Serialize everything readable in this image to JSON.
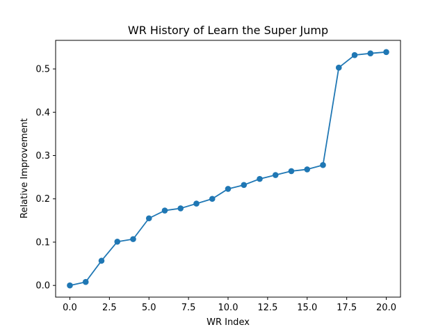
{
  "chart_data": {
    "type": "line",
    "title": "WR History of Learn the Super Jump",
    "xlabel": "WR Index",
    "ylabel": "Relative Improvement",
    "x": [
      0,
      1,
      2,
      3,
      4,
      5,
      6,
      7,
      8,
      9,
      10,
      11,
      12,
      13,
      14,
      15,
      16,
      17,
      18,
      19,
      20
    ],
    "series": [
      {
        "values": [
          0.0,
          0.008,
          0.057,
          0.101,
          0.107,
          0.155,
          0.173,
          0.178,
          0.189,
          0.2,
          0.223,
          0.232,
          0.246,
          0.255,
          0.264,
          0.268,
          0.278,
          0.503,
          0.532,
          0.536,
          0.539
        ],
        "color": "#1f77b4",
        "marker": "circle"
      }
    ],
    "xlim": [
      -0.9,
      20.9
    ],
    "ylim": [
      -0.027,
      0.566
    ],
    "xticks": [
      0.0,
      2.5,
      5.0,
      7.5,
      10.0,
      12.5,
      15.0,
      17.5,
      20.0
    ],
    "xtick_labels": [
      "0.0",
      "2.5",
      "5.0",
      "7.5",
      "10.0",
      "12.5",
      "15.0",
      "17.5",
      "20.0"
    ],
    "yticks": [
      0.0,
      0.1,
      0.2,
      0.3,
      0.4,
      0.5
    ],
    "ytick_labels": [
      "0.0",
      "0.1",
      "0.2",
      "0.3",
      "0.4",
      "0.5"
    ],
    "grid": false,
    "legend": "none"
  }
}
